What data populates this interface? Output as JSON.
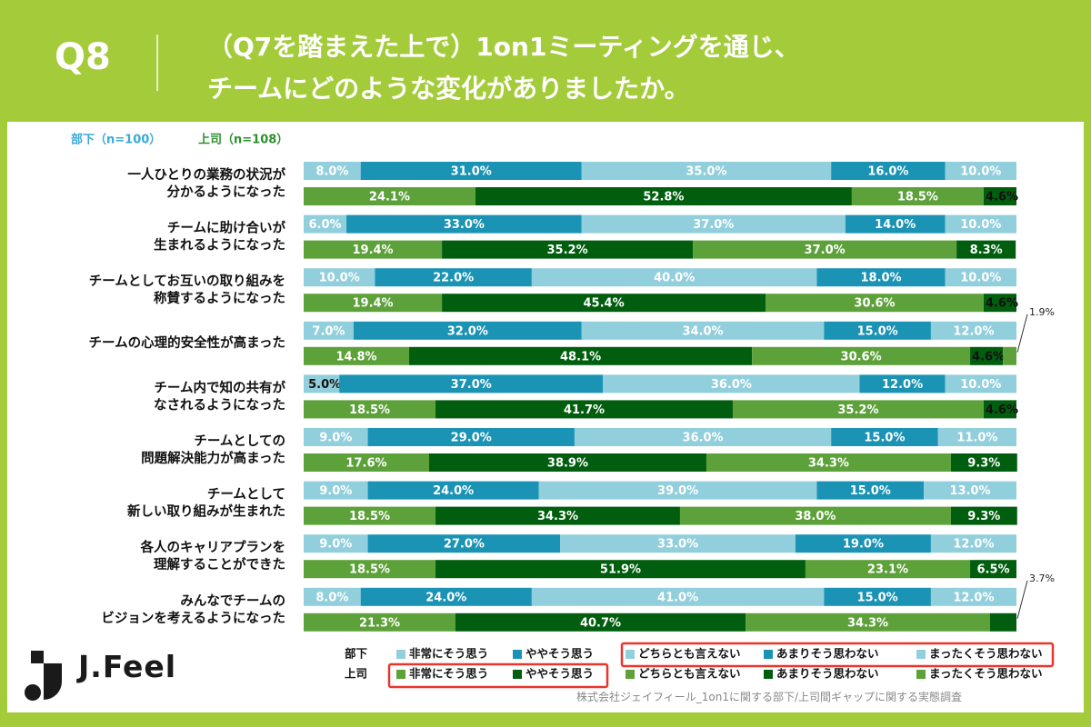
{
  "header": {
    "q_label": "Q8",
    "title_line1": "（Q7を踏まえた上で）1on1ミーティングを通じ、",
    "title_line2": "チームにどのような変化がありましたか。"
  },
  "colors": {
    "background": "#a4cb3a",
    "sub": [
      "#92cfdc",
      "#1b93b5",
      "#92cfdc",
      "#1b93b5",
      "#92cfdc"
    ],
    "sup": [
      "#5da13a",
      "#005e0e",
      "#5da13a",
      "#005e0e",
      "#5da13a"
    ],
    "sub_group_text": "#3ba8d6",
    "sup_group_text": "#2e8f2e",
    "highlight": "#e8352d"
  },
  "chart_data": {
    "type": "bar",
    "orientation": "horizontal-stacked-100",
    "groups": [
      "部下（n=100）",
      "上司（n=108）"
    ],
    "group_keys": [
      "部下",
      "上司"
    ],
    "categories": [
      "非常にそう思う",
      "ややそう思う",
      "どちらとも言えない",
      "あまりそう思わない",
      "まったくそう思わない"
    ],
    "rows": [
      {
        "label": [
          "一人ひとりの業務の状況が",
          "分かるようになった"
        ],
        "sub": [
          8.0,
          31.0,
          35.0,
          16.0,
          10.0
        ],
        "sup": [
          24.1,
          52.8,
          18.5,
          4.6,
          0
        ]
      },
      {
        "label": [
          "チームに助け合いが",
          "生まれるようになった"
        ],
        "sub": [
          6.0,
          33.0,
          37.0,
          14.0,
          10.0
        ],
        "sup": [
          19.4,
          35.2,
          37.0,
          8.3,
          0
        ]
      },
      {
        "label": [
          "チームとしてお互いの取り組みを",
          "称賛するようになった"
        ],
        "sub": [
          10.0,
          22.0,
          40.0,
          18.0,
          10.0
        ],
        "sup": [
          19.4,
          45.4,
          30.6,
          4.6,
          0
        ]
      },
      {
        "label": [
          "チームの心理的安全性が高まった"
        ],
        "sub": [
          7.0,
          32.0,
          34.0,
          15.0,
          12.0
        ],
        "sup": [
          14.8,
          48.1,
          30.6,
          4.6,
          1.9
        ],
        "note": "1.9%"
      },
      {
        "label": [
          "チーム内で知の共有が",
          "なされるようになった"
        ],
        "sub": [
          5.0,
          37.0,
          36.0,
          12.0,
          10.0
        ],
        "sup": [
          18.5,
          41.7,
          35.2,
          4.6,
          0
        ]
      },
      {
        "label": [
          "チームとしての",
          "問題解決能力が高まった"
        ],
        "sub": [
          9.0,
          29.0,
          36.0,
          15.0,
          11.0
        ],
        "sup": [
          17.6,
          38.9,
          34.3,
          9.3,
          0
        ]
      },
      {
        "label": [
          "チームとして",
          "新しい取り組みが生まれた"
        ],
        "sub": [
          9.0,
          24.0,
          39.0,
          15.0,
          13.0
        ],
        "sup": [
          18.5,
          34.3,
          38.0,
          9.3,
          0
        ]
      },
      {
        "label": [
          "各人のキャリアプランを",
          "理解することができた"
        ],
        "sub": [
          9.0,
          27.0,
          33.0,
          19.0,
          12.0
        ],
        "sup": [
          18.5,
          51.9,
          23.1,
          6.5,
          0
        ]
      },
      {
        "label": [
          "みんなでチームの",
          "ビジョンを考えるようになった"
        ],
        "sub": [
          8.0,
          24.0,
          41.0,
          15.0,
          12.0
        ],
        "sup": [
          21.3,
          40.7,
          34.3,
          3.7,
          0
        ],
        "sup_hide_labels": [
          3
        ],
        "note": "3.7%"
      }
    ],
    "xlim": [
      0,
      100
    ]
  },
  "logo": {
    "text": "J.Feel"
  },
  "source": "株式会社ジェイフィール_1on1に関する部下/上司間ギャップに関する実態調査"
}
